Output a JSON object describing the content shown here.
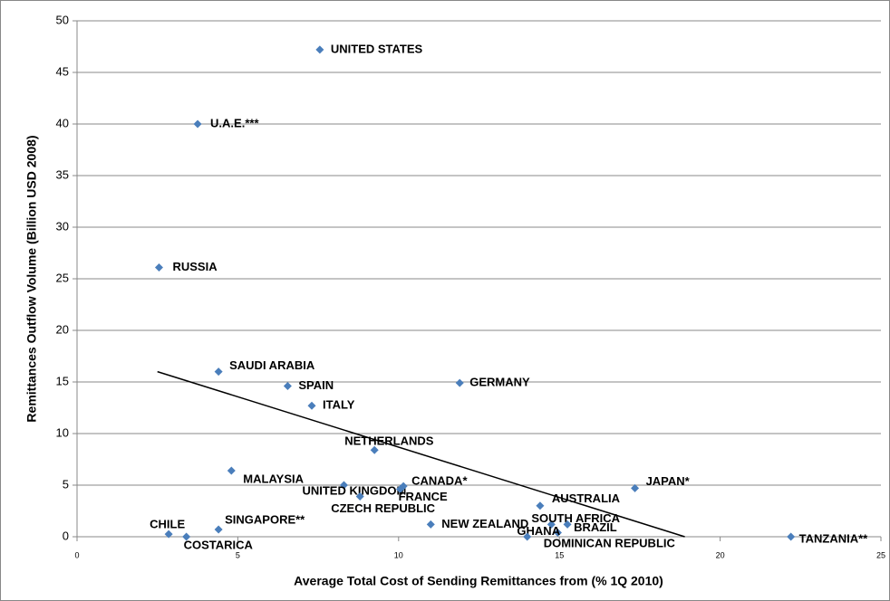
{
  "chart_data": {
    "type": "scatter",
    "x_label": "Average Total Cost of Sending Remittances from (% 1Q 2010)",
    "y_label": "Remittances Outflow Volume (Billion USD 2008)",
    "labels": [
      "UNITED STATES",
      "U.A.E.***",
      "RUSSIA",
      "SAUDI ARABIA",
      "SPAIN",
      "ITALY",
      "GERMANY",
      "NETHERLANDS",
      "MALAYSIA",
      "UNITED KINGDOM",
      "CANADA*",
      "FRANCE",
      "CZECH REPUBLIC",
      "JAPAN*",
      "AUSTRALIA",
      "SOUTH AFRICA",
      "BRAZIL",
      "GHANA",
      "DOMINICAN REPUBLIC",
      "NEW ZEALAND",
      "SINGAPORE**",
      "CHILE",
      "COSTARICA",
      "TANZANIA**"
    ],
    "x": [
      7.55,
      3.75,
      2.55,
      4.4,
      6.55,
      7.3,
      11.9,
      9.25,
      4.8,
      8.3,
      10.15,
      10.05,
      8.8,
      17.35,
      14.4,
      14.75,
      15.25,
      14.95,
      14.0,
      11.0,
      4.4,
      2.85,
      3.4,
      22.2
    ],
    "values": [
      47.2,
      40.0,
      26.1,
      16.0,
      14.6,
      12.7,
      14.9,
      8.4,
      6.4,
      5.0,
      4.9,
      4.6,
      3.9,
      4.7,
      3.0,
      1.2,
      1.2,
      0.4,
      0.0,
      1.2,
      0.7,
      0.25,
      0.0,
      0.0
    ],
    "color": "#4a7ebb",
    "trend_line": {
      "x": [
        2.5,
        18.9
      ],
      "values": [
        16,
        0
      ],
      "color": "#000000"
    },
    "xlim": [
      0,
      25
    ],
    "xticks": [
      0,
      5,
      10,
      15,
      20,
      25
    ],
    "ylim": [
      0,
      50
    ],
    "yticks": [
      0,
      5,
      10,
      15,
      20,
      25,
      30,
      35,
      40,
      45,
      50
    ],
    "grid": true
  }
}
